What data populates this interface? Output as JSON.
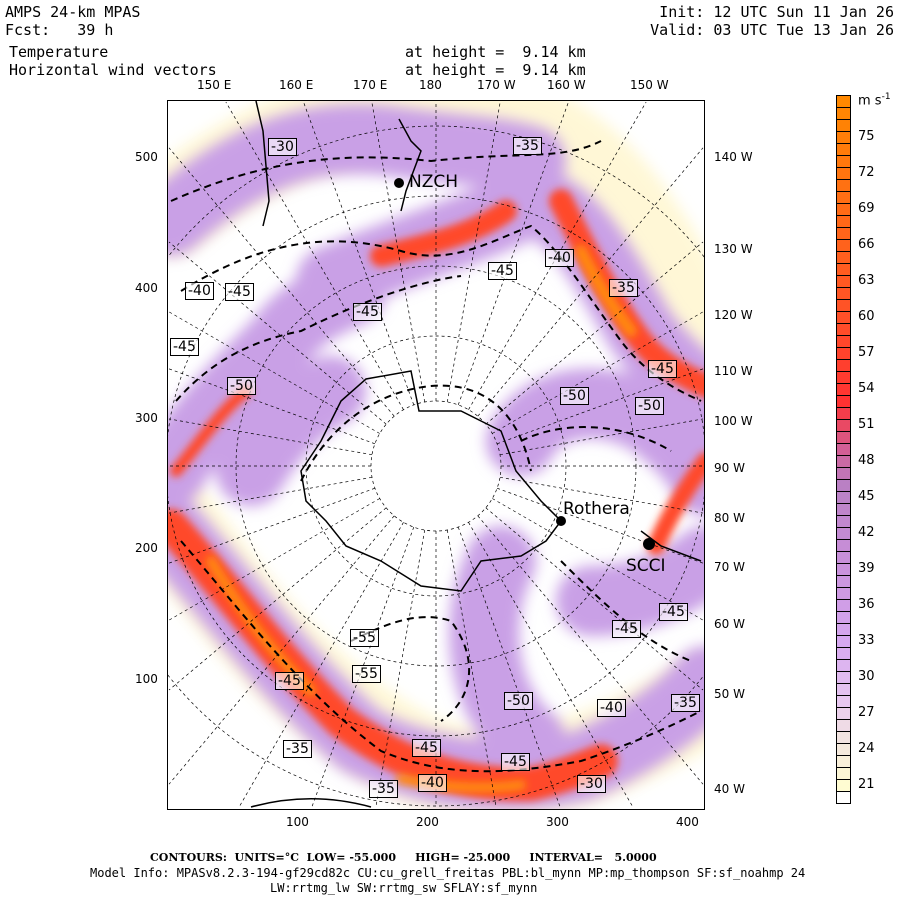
{
  "header": {
    "title": "AMPS 24-km MPAS",
    "forecast": "Fcst:   39 h",
    "init": "Init: 12 UTC Sun 11 Jan 26",
    "valid": "Valid: 03 UTC Tue 13 Jan 26",
    "field1": "Temperature",
    "field2": "Horizontal wind vectors",
    "height1": "at height =  9.14 km",
    "height2": "at height =  9.14 km"
  },
  "top_axis": [
    "150 E",
    "160 E",
    "170 E",
    "180",
    "170 W",
    "160 W",
    "150 W"
  ],
  "right_axis": [
    "140 W",
    "130 W",
    "120 W",
    "110 W",
    "100 W",
    "90 W",
    "80 W",
    "70 W",
    "60 W",
    "50 W",
    "40 W"
  ],
  "left_axis": [
    "500",
    "400",
    "300",
    "200",
    "100"
  ],
  "bottom_axis": [
    "100",
    "200",
    "300",
    "400"
  ],
  "colorbar": {
    "units": "m s",
    "units_sup": "-1",
    "labels": [
      "75",
      "72",
      "69",
      "66",
      "63",
      "60",
      "57",
      "54",
      "51",
      "48",
      "45",
      "42",
      "39",
      "36",
      "33",
      "30",
      "27",
      "24",
      "21"
    ],
    "min": 20,
    "max": 78
  },
  "stations": [
    "NZCH",
    "Rothera",
    "SCCI"
  ],
  "contour_labels": [
    "-30",
    "-35",
    "-45",
    "-40",
    "-35",
    "-40",
    "-45",
    "-45",
    "-45",
    "-50",
    "-50",
    "-50",
    "-45",
    "-55",
    "-55",
    "-45",
    "-50",
    "-40",
    "-35",
    "-45",
    "-45",
    "-35",
    "-45",
    "-45",
    "-40",
    "-35",
    "-30"
  ],
  "footer": {
    "contours": "CONTOURS:  UNITS=°C  LOW= -55.000     HIGH= -25.000     INTERVAL=   5.0000",
    "model_info": "Model Info: MPASv8.2.3-194-gf29cd82c CU:cu_grell_freitas PBL:bl_mynn MP:mp_thompson SF:sf_noahmp 24",
    "model_info2": "LW:rrtmg_lw SW:rrtmg_sw SFLAY:sf_mynn"
  }
}
